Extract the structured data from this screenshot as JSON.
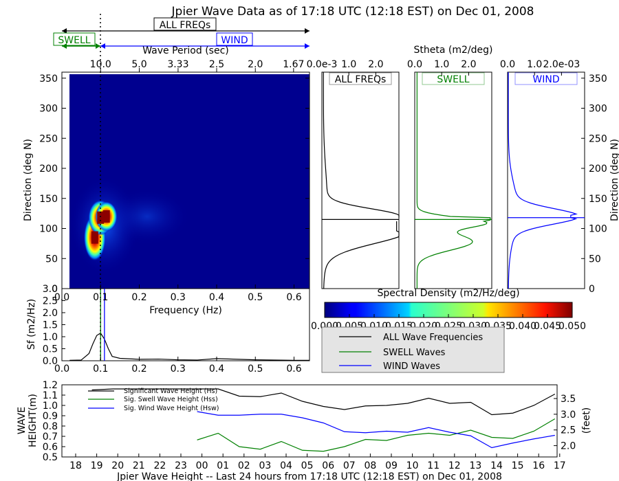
{
  "title": "Jpier Wave Data as of 17:18 UTC (12:18 EST) on Dec 01, 2008",
  "colors": {
    "all": "#000000",
    "swell": "#008000",
    "wind": "#0000ff"
  },
  "legend_bars": {
    "all": "ALL FREQs",
    "swell": "SWELL",
    "wind": "WIND"
  },
  "heatmap": {
    "top_xlabel": "Wave Period (sec)",
    "period_ticks": [
      "10.0",
      "5.0",
      "3.33",
      "2.5",
      "2.0",
      "1.67"
    ],
    "ylabel": "Direction (deg N)",
    "yticks": [
      "0",
      "50",
      "100",
      "150",
      "200",
      "250",
      "300",
      "350"
    ],
    "xticks": [
      "0.0",
      "0.1",
      "0.2",
      "0.3",
      "0.4",
      "0.5",
      "0.6"
    ],
    "xlabel": "Frequency (Hz)",
    "colorbar_title": "Spectral Density (m2/Hz/deg)",
    "colorbar_ticks": [
      "0.000",
      "0.005",
      "0.010",
      "0.015",
      "0.020",
      "0.025",
      "0.030",
      "0.035",
      "0.040",
      "0.045",
      "0.050"
    ]
  },
  "stheta": {
    "title": "Stheta (m2/deg)",
    "panels": [
      {
        "key": "all",
        "label": "ALL FREQs",
        "ticks": [
          "0.0e-3",
          "1.0",
          "2.0"
        ]
      },
      {
        "key": "swell",
        "label": "SWELL",
        "ticks": [
          "0.0",
          "1.0",
          "2.0"
        ]
      },
      {
        "key": "wind",
        "label": "WIND",
        "ticks": [
          "0.0",
          "1.0",
          "2.0e-03"
        ]
      }
    ],
    "right_ylabel": "Direction (deg N)",
    "right_yticks": [
      "0",
      "50",
      "100",
      "150",
      "200",
      "250",
      "300",
      "350"
    ]
  },
  "sf": {
    "ylabel": "Sf (m2/Hz)",
    "yticks": [
      "0.0",
      "0.5",
      "1.0",
      "1.5",
      "2.0",
      "2.5",
      "3.0"
    ]
  },
  "spectral_legend": [
    "ALL Wave Frequencies",
    "SWELL Waves",
    "WIND Waves"
  ],
  "height": {
    "ylabel_line1": "WAVE",
    "ylabel_line2": "HEIGHT(m)",
    "yticks": [
      "0.5",
      "0.6",
      "0.7",
      "0.8",
      "0.9",
      "1.0",
      "1.1",
      "1.2"
    ],
    "right_ylabel": "(feet)",
    "right_yticks": [
      "2.0",
      "2.5",
      "3.0",
      "3.5"
    ],
    "xticks": [
      "18",
      "19",
      "20",
      "21",
      "22",
      "23",
      "00",
      "01",
      "02",
      "03",
      "04",
      "05",
      "06",
      "07",
      "08",
      "09",
      "10",
      "11",
      "12",
      "13",
      "14",
      "15",
      "16",
      "17"
    ],
    "xlabel": "Jpier Wave Height -- Last 24 hours from 17:18 UTC (12:18 EST) on Dec 01, 2008",
    "legend": [
      "Significant Wave Height (Hs)",
      "Sig. Swell Wave Height (Hss)",
      "Sig. Wind Wave Height (Hsw)"
    ]
  },
  "chart_data": [
    {
      "type": "heatmap",
      "title": "Jpier Wave Data as of 17:18 UTC (12:18 EST) on Dec 01, 2008",
      "xlabel": "Frequency (Hz)",
      "ylabel": "Direction (deg N)",
      "xlim": [
        0.0,
        0.64
      ],
      "ylim": [
        0,
        360
      ],
      "clim": [
        0.0,
        0.05
      ],
      "swell_peak_frequency": 0.1,
      "wind_peak_frequency": 0.11,
      "blobs": [
        {
          "f": 0.085,
          "dir": 85,
          "density": 0.05
        },
        {
          "f": 0.1,
          "dir": 118,
          "density": 0.05
        },
        {
          "f": 0.115,
          "dir": 120,
          "density": 0.045
        }
      ]
    },
    {
      "type": "line",
      "ylabel": "Sf (m2/Hz)",
      "xlabel": "Frequency (Hz)",
      "ylim": [
        0,
        3
      ],
      "xlim": [
        0,
        0.64
      ],
      "series": [
        {
          "name": "ALL Wave Frequencies",
          "x": [
            0.02,
            0.05,
            0.07,
            0.08,
            0.09,
            0.1,
            0.11,
            0.12,
            0.13,
            0.15,
            0.2,
            0.25,
            0.3,
            0.35,
            0.4,
            0.5,
            0.6,
            0.64
          ],
          "y": [
            0.02,
            0.03,
            0.3,
            0.7,
            1.05,
            1.15,
            0.9,
            0.5,
            0.18,
            0.1,
            0.06,
            0.07,
            0.04,
            0.03,
            0.09,
            0.04,
            0.02,
            0.02
          ]
        }
      ]
    },
    {
      "type": "line",
      "title": "Stheta (m2/deg)",
      "ylim": [
        0,
        360
      ],
      "series": [
        {
          "name": "ALL FREQs",
          "peak_direction": 115
        },
        {
          "name": "SWELL",
          "peak_direction": 115
        },
        {
          "name": "WIND",
          "peak_direction": 118
        }
      ]
    },
    {
      "type": "line",
      "xlabel": "Jpier Wave Height -- Last 24 hours from 17:18 UTC (12:18 EST) on Dec 01, 2008",
      "ylabel": "WAVE HEIGHT(m)",
      "ylim": [
        0.5,
        1.2
      ],
      "x": [
        "19",
        "20",
        "21",
        "22",
        "23",
        "00",
        "01",
        "02",
        "03",
        "04",
        "05",
        "06",
        "07",
        "08",
        "09",
        "10",
        "11",
        "12",
        "13",
        "14",
        "15",
        "16",
        "17"
      ],
      "series": [
        {
          "name": "Significant Wave Height (Hs)",
          "values": [
            1.15,
            1.16,
            1.16,
            1.16,
            1.16,
            1.16,
            1.16,
            1.09,
            1.085,
            1.12,
            1.04,
            0.99,
            0.96,
            0.995,
            1.0,
            1.02,
            1.07,
            1.02,
            1.03,
            0.91,
            0.925,
            1.0,
            1.11
          ]
        },
        {
          "name": "Sig. Swell Wave Height (Hss)",
          "values": [
            null,
            null,
            null,
            null,
            null,
            0.665,
            0.73,
            0.6,
            0.575,
            0.65,
            0.565,
            0.555,
            0.6,
            0.67,
            0.66,
            0.71,
            0.73,
            0.71,
            0.76,
            0.69,
            0.68,
            0.75,
            0.87
          ]
        },
        {
          "name": "Sig. Wind Wave Height (Hsw)",
          "values": [
            null,
            null,
            null,
            null,
            null,
            0.94,
            0.905,
            0.905,
            0.915,
            0.915,
            0.88,
            0.83,
            0.745,
            0.735,
            0.75,
            0.74,
            0.785,
            0.74,
            0.705,
            0.59,
            0.635,
            0.675,
            0.71
          ]
        }
      ]
    }
  ]
}
